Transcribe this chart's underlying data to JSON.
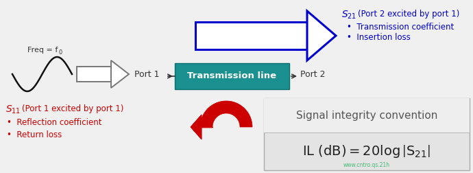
{
  "bg_color": "#f0f0f0",
  "sine_color": "#111111",
  "freq_label": "Freq = f",
  "freq_sub": "0",
  "arrow_outline_color": "#888888",
  "tline_color": "#1a9090",
  "tline_edge_color": "#0d6e6e",
  "tline_text_color": "#ffffff",
  "tline_label": "Transmission line",
  "port1_label": "Port 1",
  "port2_label": "Port 2",
  "s21_color": "#0000cc",
  "s21_paren": "(Port 2 excited by port 1)",
  "s21_bullet1": "Transmission coefficient",
  "s21_bullet2": "Insertion loss",
  "big_arrow_color": "#0000cc",
  "s11_color": "#cc0000",
  "s11_paren": "(Port 1 excited by port 1)",
  "s11_bullet1": "Reflection coefficient",
  "s11_bullet2": "Return loss",
  "return_arrow_color": "#cc0000",
  "sig_int_title": "Signal integrity convention",
  "sig_int_title_color": "#555555",
  "sig_int_bg_top": "#e8e8e8",
  "sig_int_bg_bot": "#d8d8d8",
  "formula_color": "#222222",
  "watermark": "www.cntro.qs.21h",
  "watermark_color": "#00aa44"
}
